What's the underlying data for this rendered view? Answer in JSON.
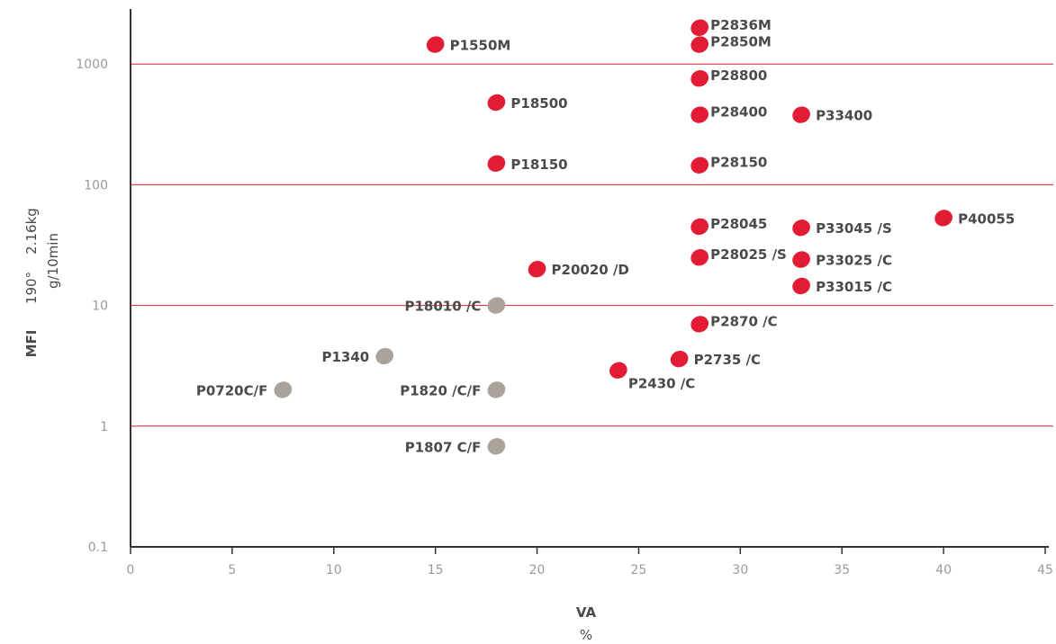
{
  "chart_data": {
    "type": "scatter",
    "title": "",
    "xlabel": "VA",
    "xunit": "%",
    "ylabel": "MFI",
    "ylabel_parts": [
      "190°",
      "2.16kg"
    ],
    "yunit": "g/10min",
    "xlim": [
      0,
      45
    ],
    "ylim": [
      0.1,
      2000
    ],
    "yscale": "log",
    "x_ticks": [
      0,
      5,
      10,
      15,
      20,
      25,
      30,
      35,
      40,
      45
    ],
    "y_ticks": [
      {
        "value": 0.1,
        "label": "0.1"
      },
      {
        "value": 1,
        "label": "1"
      },
      {
        "value": 10,
        "label": "10"
      },
      {
        "value": 100,
        "label": "100"
      },
      {
        "value": 1000,
        "label": "1000"
      }
    ],
    "gridlines_y": [
      1,
      10,
      100,
      1000
    ],
    "colors": {
      "red": "#e31c35",
      "gray": "#a9a39c",
      "grid": "#d8232f",
      "axis": "#333333",
      "tick_text": "#9a9a9a",
      "label_text": "#4a4a4a"
    },
    "points": [
      {
        "label": "P2836M",
        "x": 28,
        "y": 2000,
        "color": "red"
      },
      {
        "label": "P2850M",
        "x": 28,
        "y": 1450,
        "color": "red"
      },
      {
        "label": "P1550M",
        "x": 15,
        "y": 1450,
        "color": "red"
      },
      {
        "label": "P28800",
        "x": 28,
        "y": 760,
        "color": "red"
      },
      {
        "label": "P18500",
        "x": 18,
        "y": 480,
        "color": "red"
      },
      {
        "label": "P28400",
        "x": 28,
        "y": 380,
        "color": "red"
      },
      {
        "label": "P33400",
        "x": 33,
        "y": 380,
        "color": "red"
      },
      {
        "label": "P18150",
        "x": 18,
        "y": 150,
        "color": "red"
      },
      {
        "label": "P28150",
        "x": 28,
        "y": 145,
        "color": "red"
      },
      {
        "label": "P40055",
        "x": 40,
        "y": 53,
        "color": "red"
      },
      {
        "label": "P28045",
        "x": 28,
        "y": 45,
        "color": "red"
      },
      {
        "label": "P33045 /S",
        "x": 33,
        "y": 44,
        "color": "red"
      },
      {
        "label": "P28025 /S",
        "x": 28,
        "y": 25,
        "color": "red"
      },
      {
        "label": "P33025 /C",
        "x": 33,
        "y": 24,
        "color": "red"
      },
      {
        "label": "P20020 /D",
        "x": 20,
        "y": 20,
        "color": "red"
      },
      {
        "label": "P33015 /C",
        "x": 33,
        "y": 14.5,
        "color": "red"
      },
      {
        "label": "P18010 /C",
        "x": 18,
        "y": 10,
        "color": "gray"
      },
      {
        "label": "P2870 /C",
        "x": 28,
        "y": 7,
        "color": "red"
      },
      {
        "label": "P1340",
        "x": 12.5,
        "y": 3.8,
        "color": "gray"
      },
      {
        "label": "P2735 /C",
        "x": 27,
        "y": 3.6,
        "color": "red"
      },
      {
        "label": "P2430 /C",
        "x": 24,
        "y": 2.9,
        "color": "red"
      },
      {
        "label": "P0720C/F",
        "x": 7.5,
        "y": 2,
        "color": "gray"
      },
      {
        "label": "P1820 /C/F",
        "x": 18,
        "y": 2,
        "color": "gray"
      },
      {
        "label": "P1807 C/F",
        "x": 18,
        "y": 0.68,
        "color": "gray"
      }
    ]
  }
}
